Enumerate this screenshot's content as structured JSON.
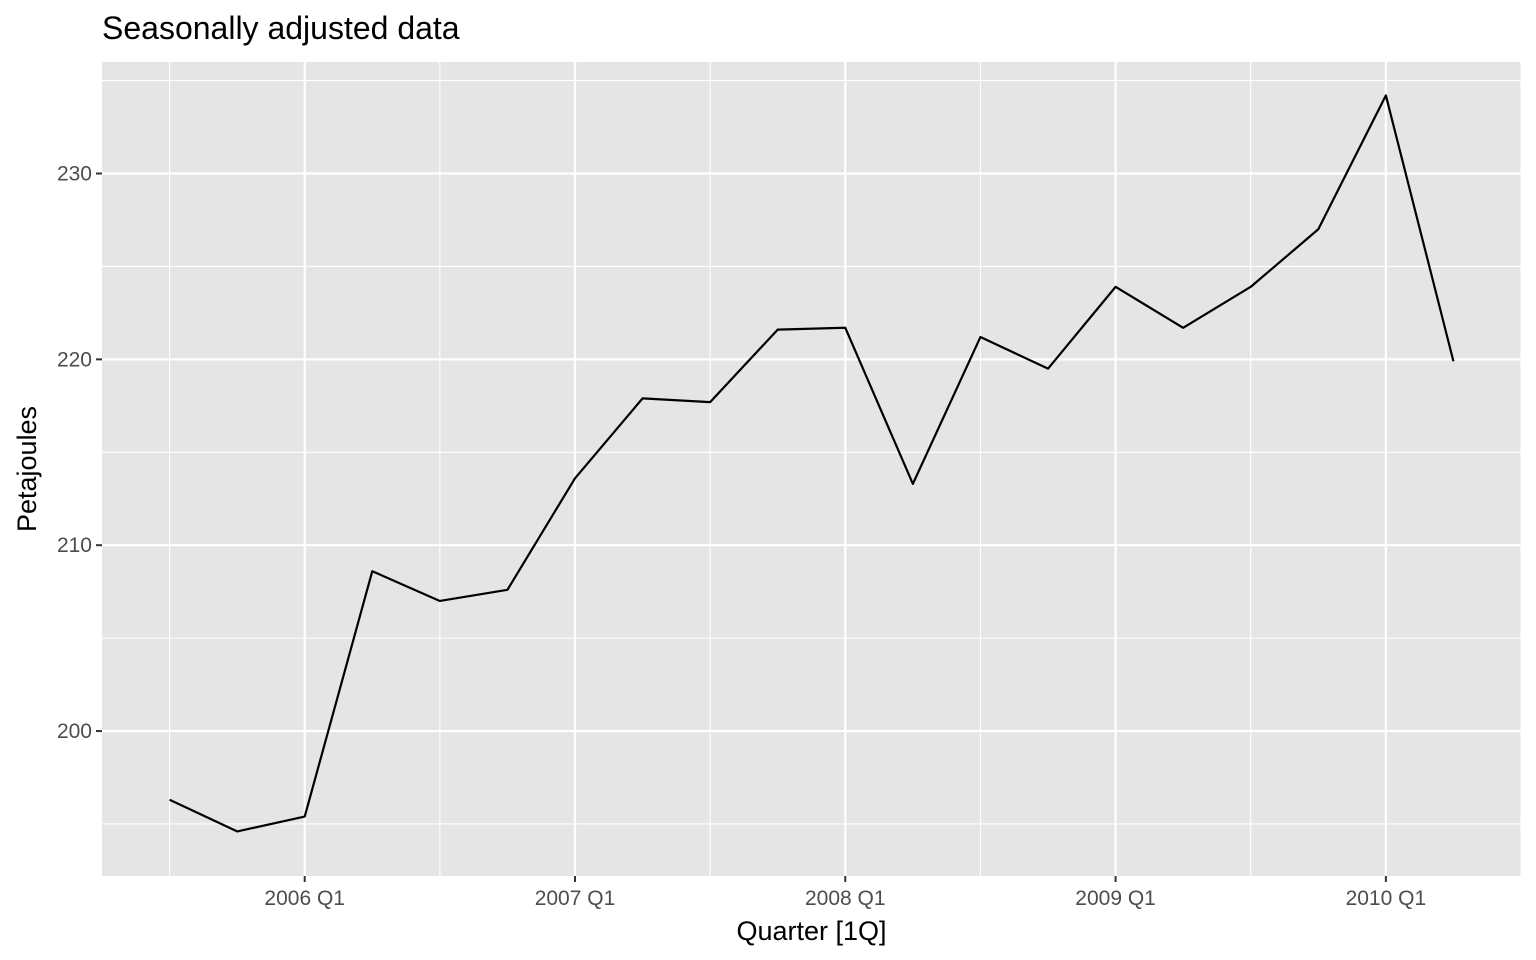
{
  "chart_data": {
    "type": "line",
    "title": "Seasonally adjusted data",
    "xlabel": "Quarter [1Q]",
    "ylabel": "Petajoules",
    "x": [
      "2005 Q3",
      "2005 Q4",
      "2006 Q1",
      "2006 Q2",
      "2006 Q3",
      "2006 Q4",
      "2007 Q1",
      "2007 Q2",
      "2007 Q3",
      "2007 Q4",
      "2008 Q1",
      "2008 Q2",
      "2008 Q3",
      "2008 Q4",
      "2009 Q1",
      "2009 Q2",
      "2009 Q3",
      "2009 Q4",
      "2010 Q1",
      "2010 Q2"
    ],
    "series": [
      {
        "values": [
          196.3,
          194.6,
          195.4,
          208.6,
          207.0,
          207.6,
          213.6,
          217.9,
          217.7,
          221.6,
          221.7,
          213.3,
          221.2,
          219.5,
          223.9,
          221.7,
          223.9,
          227.0,
          234.2,
          219.9
        ],
        "color": "#000000"
      }
    ],
    "x_ticks": [
      "2006 Q1",
      "2007 Q1",
      "2008 Q1",
      "2009 Q1",
      "2010 Q1"
    ],
    "y_ticks": [
      200,
      210,
      220,
      230
    ],
    "ylim": [
      192.2,
      236.0
    ],
    "xlim": [
      "2005 Q2",
      "2010 Q3"
    ],
    "grid": true,
    "panel_background": "#e5e5e5",
    "grid_color": "#ffffff",
    "legend": "none"
  }
}
